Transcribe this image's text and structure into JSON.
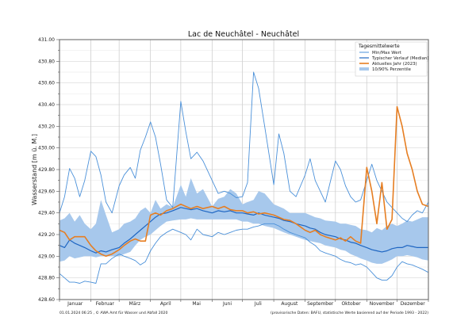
{
  "chart_data": {
    "type": "line",
    "title": "Lac de Neuchâtel - Neuchâtel",
    "xlabel": "",
    "ylabel": "Wasserstand [m ü. M.]",
    "ylim": [
      428.6,
      431.0
    ],
    "xlim_days": [
      0,
      365
    ],
    "grid": true,
    "y_ticks": [
      "428.60",
      "428.80",
      "429.00",
      "429.20",
      "429.40",
      "429.60",
      "429.80",
      "430.00",
      "430.20",
      "430.40",
      "430.60",
      "430.80",
      "431.00"
    ],
    "x_tick_labels": [
      "Januar",
      "Februar",
      "März",
      "April",
      "Mai",
      "Juni",
      "Juli",
      "August",
      "September",
      "Oktober",
      "November",
      "Dezember"
    ],
    "month_start_days": [
      0,
      31,
      59,
      90,
      120,
      151,
      181,
      212,
      243,
      273,
      304,
      334,
      365
    ],
    "legend": {
      "title": "Tagesmittelwerte",
      "placement": "top-right",
      "entries": [
        {
          "label": "Min/Max Wert",
          "color": "#4a90d9",
          "kind": "line"
        },
        {
          "label": "Typischer Verlauf (Median)",
          "color": "#1f66c2",
          "kind": "line"
        },
        {
          "label": "Aktuelles Jahr (2023)",
          "color": "#e67e22",
          "kind": "line"
        },
        {
          "label": "10/90% Perzentile",
          "color": "#a7c8ec",
          "kind": "area"
        }
      ]
    },
    "x_days": [
      0,
      5,
      10,
      15,
      20,
      25,
      31,
      36,
      41,
      46,
      52,
      59,
      64,
      70,
      75,
      80,
      85,
      90,
      95,
      100,
      106,
      112,
      120,
      125,
      130,
      136,
      142,
      151,
      157,
      163,
      169,
      175,
      181,
      186,
      192,
      197,
      203,
      212,
      217,
      222,
      228,
      234,
      243,
      248,
      253,
      258,
      263,
      273,
      278,
      283,
      288,
      293,
      298,
      304,
      309,
      314,
      319,
      324,
      329,
      334,
      339,
      344,
      349,
      354,
      359,
      365
    ],
    "series": [
      {
        "name": "Max",
        "values": [
          429.4,
          429.55,
          429.81,
          429.72,
          429.55,
          429.7,
          429.97,
          429.92,
          429.75,
          429.5,
          429.4,
          429.65,
          429.75,
          429.82,
          429.72,
          429.98,
          430.1,
          430.24,
          430.1,
          429.85,
          429.52,
          429.45,
          430.43,
          430.15,
          429.9,
          429.96,
          429.88,
          429.7,
          429.58,
          429.6,
          429.58,
          429.54,
          429.55,
          429.68,
          430.7,
          430.55,
          430.2,
          429.66,
          430.13,
          429.95,
          429.6,
          429.55,
          429.75,
          429.9,
          429.7,
          429.6,
          429.5,
          429.88,
          429.8,
          429.65,
          429.55,
          429.5,
          429.52,
          429.7,
          429.85,
          429.7,
          429.6,
          429.5,
          429.45,
          429.4,
          429.35,
          429.32,
          429.38,
          429.42,
          429.4,
          429.5
        ]
      },
      {
        "name": "Min",
        "values": [
          428.84,
          428.8,
          428.76,
          428.76,
          428.75,
          428.77,
          428.76,
          428.75,
          428.93,
          428.93,
          428.98,
          429.02,
          429.0,
          428.98,
          428.96,
          428.92,
          428.95,
          429.05,
          429.12,
          429.18,
          429.22,
          429.25,
          429.22,
          429.2,
          429.15,
          429.25,
          429.2,
          429.18,
          429.22,
          429.2,
          429.22,
          429.24,
          429.25,
          429.25,
          429.27,
          429.28,
          429.3,
          429.3,
          429.28,
          429.25,
          429.22,
          429.2,
          429.17,
          429.13,
          429.1,
          429.05,
          429.03,
          429.0,
          428.97,
          428.95,
          428.94,
          428.92,
          428.93,
          428.9,
          428.85,
          428.8,
          428.78,
          428.78,
          428.82,
          428.9,
          428.95,
          428.93,
          428.92,
          428.9,
          428.88,
          428.85
        ]
      },
      {
        "name": "Typischer Verlauf (Median)",
        "values": [
          429.1,
          429.08,
          429.15,
          429.12,
          429.1,
          429.08,
          429.05,
          429.03,
          429.05,
          429.04,
          429.06,
          429.08,
          429.12,
          429.16,
          429.2,
          429.24,
          429.28,
          429.32,
          429.36,
          429.39,
          429.4,
          429.42,
          429.45,
          429.44,
          429.43,
          429.44,
          429.42,
          429.4,
          429.42,
          429.41,
          429.42,
          429.4,
          429.4,
          429.39,
          429.38,
          429.4,
          429.38,
          429.36,
          429.35,
          429.33,
          429.32,
          429.3,
          429.28,
          429.26,
          429.25,
          429.22,
          429.2,
          429.18,
          429.16,
          429.15,
          429.13,
          429.12,
          429.1,
          429.08,
          429.06,
          429.05,
          429.04,
          429.05,
          429.07,
          429.08,
          429.08,
          429.1,
          429.09,
          429.08,
          429.08,
          429.08
        ]
      },
      {
        "name": "Aktuelles Jahr (2023)",
        "values": [
          429.24,
          429.22,
          429.15,
          429.18,
          429.18,
          429.18,
          429.1,
          429.05,
          429.02,
          429.0,
          429.02,
          429.06,
          429.1,
          429.14,
          429.16,
          429.14,
          429.14,
          429.38,
          429.4,
          429.38,
          429.42,
          429.44,
          429.48,
          429.46,
          429.44,
          429.46,
          429.44,
          429.46,
          429.44,
          429.46,
          429.43,
          429.42,
          429.42,
          429.4,
          429.41,
          429.39,
          429.4,
          429.38,
          429.36,
          429.34,
          429.33,
          429.3,
          429.24,
          429.22,
          429.24,
          429.2,
          429.18,
          429.15,
          429.17,
          429.14,
          429.18,
          429.14,
          429.12,
          429.82,
          429.6,
          429.3,
          429.68,
          429.25,
          429.34,
          430.38,
          430.2,
          429.95,
          429.8,
          429.6,
          429.48,
          429.46
        ]
      },
      {
        "name": "Perzentile 90%",
        "values": [
          429.33,
          429.35,
          429.4,
          429.32,
          429.38,
          429.3,
          429.25,
          429.3,
          429.52,
          429.38,
          429.22,
          429.25,
          429.3,
          429.32,
          429.35,
          429.42,
          429.45,
          429.4,
          429.52,
          429.44,
          429.48,
          429.45,
          429.66,
          429.55,
          429.72,
          429.58,
          429.62,
          429.46,
          429.53,
          429.55,
          429.62,
          429.58,
          429.48,
          429.5,
          429.52,
          429.6,
          429.58,
          429.48,
          429.46,
          429.44,
          429.4,
          429.4,
          429.4,
          429.38,
          429.36,
          429.35,
          429.33,
          429.32,
          429.3,
          429.3,
          429.29,
          429.28,
          429.25,
          429.24,
          429.22,
          429.26,
          429.24,
          429.28,
          429.3,
          429.28,
          429.3,
          429.33,
          429.32,
          429.34,
          429.36,
          429.36
        ]
      },
      {
        "name": "Perzentile 10%",
        "values": [
          428.95,
          428.96,
          429.0,
          428.98,
          428.99,
          429.0,
          429.0,
          428.99,
          429.0,
          429.0,
          429.0,
          429.0,
          429.02,
          429.04,
          429.1,
          429.15,
          429.18,
          429.2,
          429.24,
          429.28,
          429.32,
          429.33,
          429.34,
          429.34,
          429.35,
          429.34,
          429.34,
          429.34,
          429.34,
          429.34,
          429.34,
          429.34,
          429.32,
          429.32,
          429.3,
          429.3,
          429.28,
          429.26,
          429.24,
          429.22,
          429.2,
          429.18,
          429.15,
          429.14,
          429.13,
          429.12,
          429.1,
          429.08,
          429.06,
          429.05,
          429.02,
          429.0,
          428.98,
          428.96,
          428.94,
          428.93,
          428.93,
          428.95,
          428.97,
          429.0,
          429.0,
          429.01,
          429.0,
          428.99,
          428.97,
          428.96
        ]
      }
    ],
    "footer_left": "01.01.2024 06:25 , © AWA Amt für Wasser und Abfall 2020",
    "footer_right": "(provisorische Daten: BAFU, statistische Werte basierend auf der Periode 1993 - 2022)"
  }
}
